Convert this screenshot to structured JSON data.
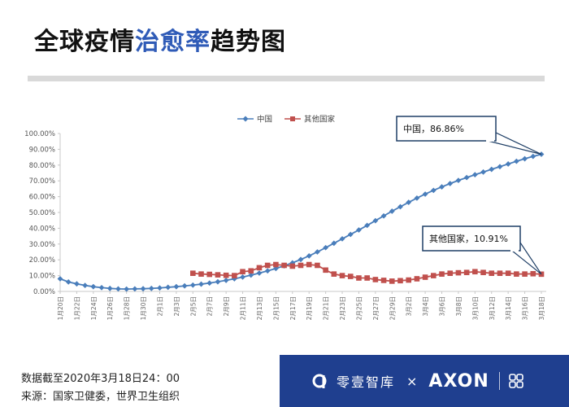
{
  "header": {
    "title_pre": "全球疫情",
    "title_highlight": "治愈率",
    "title_post": "趋势图"
  },
  "chart_data": {
    "type": "line",
    "ylim": [
      0,
      100
    ],
    "yticks": [
      "0.00%",
      "10.00%",
      "20.00%",
      "30.00%",
      "40.00%",
      "50.00%",
      "60.00%",
      "70.00%",
      "80.00%",
      "90.00%",
      "100.00%"
    ],
    "legend_position": "top",
    "grid": false,
    "x": [
      "1月20日",
      "1月21日",
      "1月22日",
      "1月23日",
      "1月24日",
      "1月25日",
      "1月26日",
      "1月27日",
      "1月28日",
      "1月29日",
      "1月30日",
      "1月31日",
      "2月1日",
      "2月2日",
      "2月3日",
      "2月4日",
      "2月5日",
      "2月6日",
      "2月7日",
      "2月8日",
      "2月9日",
      "2月10日",
      "2月11日",
      "2月12日",
      "2月13日",
      "2月14日",
      "2月15日",
      "2月16日",
      "2月17日",
      "2月18日",
      "2月19日",
      "2月20日",
      "2月21日",
      "2月22日",
      "2月23日",
      "2月24日",
      "2月25日",
      "2月26日",
      "2月27日",
      "2月28日",
      "2月29日",
      "3月1日",
      "3月2日",
      "3月3日",
      "3月4日",
      "3月5日",
      "3月6日",
      "3月7日",
      "3月8日",
      "3月9日",
      "3月10日",
      "3月11日",
      "3月12日",
      "3月13日",
      "3月14日",
      "3月15日",
      "3月16日",
      "3月17日",
      "3月18日"
    ],
    "xtick_labels": [
      "1月20日",
      "1月22日",
      "1月24日",
      "1月26日",
      "1月28日",
      "1月30日",
      "2月1日",
      "2月3日",
      "2月5日",
      "2月7日",
      "2月9日",
      "2月11日",
      "2月13日",
      "2月15日",
      "2月17日",
      "2月19日",
      "2月21日",
      "2月23日",
      "2月25日",
      "2月27日",
      "2月29日",
      "3月2日",
      "3月4日",
      "3月6日",
      "3月8日",
      "3月10日",
      "3月12日",
      "3月14日",
      "3月16日",
      "3月18日"
    ],
    "series": [
      {
        "name": "中国",
        "color": "#4a7ebb",
        "marker": "diamond",
        "values": [
          8.0,
          6.0,
          4.8,
          3.8,
          3.0,
          2.4,
          1.9,
          1.6,
          1.5,
          1.6,
          1.7,
          1.9,
          2.2,
          2.6,
          3.0,
          3.5,
          4.0,
          4.6,
          5.3,
          6.1,
          7.0,
          8.0,
          9.1,
          10.3,
          11.6,
          13.0,
          14.5,
          16.2,
          18.1,
          20.2,
          22.5,
          25.0,
          27.7,
          30.5,
          33.3,
          36.1,
          38.9,
          41.8,
          44.8,
          47.8,
          50.8,
          53.6,
          56.4,
          59.1,
          61.6,
          64.0,
          66.2,
          68.3,
          70.3,
          72.1,
          73.9,
          75.6,
          77.3,
          79.0,
          80.7,
          82.4,
          84.0,
          85.5,
          86.86
        ]
      },
      {
        "name": "其他国家",
        "color": "#c0504d",
        "marker": "square",
        "values": [
          null,
          null,
          null,
          null,
          null,
          null,
          null,
          null,
          null,
          null,
          null,
          null,
          null,
          null,
          null,
          null,
          11.5,
          11.0,
          10.8,
          10.5,
          10.2,
          10.0,
          12.5,
          13.0,
          15.0,
          16.5,
          17.0,
          16.5,
          16.0,
          16.5,
          17.0,
          16.5,
          13.5,
          11.0,
          10.0,
          9.5,
          8.5,
          8.5,
          7.5,
          7.0,
          6.5,
          6.8,
          7.2,
          8.0,
          9.0,
          10.0,
          11.0,
          11.5,
          11.8,
          12.0,
          12.5,
          12.0,
          11.5,
          11.5,
          11.5,
          11.0,
          11.0,
          11.2,
          10.91
        ]
      }
    ],
    "annotations": [
      {
        "text": "中国，86.86%",
        "series": 0
      },
      {
        "text": "其他国家，10.91%",
        "series": 1
      }
    ]
  },
  "footer": {
    "date_note": "数据截至2020年3月18日24：00",
    "source_note": "来源：国家卫健委，世界卫生组织"
  },
  "brand": {
    "name": "零壹智库",
    "times": "×",
    "partner": "AXON",
    "color": "#1f3f8f"
  }
}
